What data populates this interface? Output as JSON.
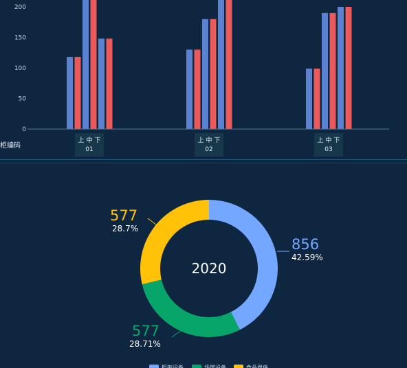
{
  "chart_data": [
    {
      "type": "bar",
      "categories": [
        "01",
        "02",
        "03"
      ],
      "sub_labels": [
        "上",
        "中",
        "下"
      ],
      "xlabel": "柜编码",
      "yticks": [
        0,
        50,
        100,
        150,
        200
      ],
      "ylim": [
        0,
        215
      ],
      "grid": false,
      "colors": [
        "#5b82d0",
        "#ea5a5a"
      ],
      "series": [
        {
          "values": [
            118,
            130,
            99
          ]
        },
        {
          "values": [
            118,
            130,
            99
          ]
        },
        {
          "values": [
            215,
            180,
            190
          ]
        },
        {
          "values": [
            215,
            180,
            190
          ]
        },
        {
          "values": [
            148,
            215,
            200
          ]
        },
        {
          "values": [
            148,
            215,
            200
          ]
        }
      ]
    },
    {
      "type": "pie",
      "donut": true,
      "center_label": "2020",
      "slices": [
        {
          "value": 856,
          "value_label": "856",
          "percent_label": "42.59%",
          "color": "#74a7ff"
        },
        {
          "value": 577,
          "value_label": "577",
          "percent_label": "28.71%",
          "color": "#08a56b"
        },
        {
          "value": 577,
          "value_label": "577",
          "percent_label": "28.7%",
          "color": "#ffc208"
        }
      ],
      "legend": {
        "position": "bottom",
        "entries": [
          {
            "label": "柜架设备",
            "color": "#74a7ff"
          },
          {
            "label": "场馆设备",
            "color": "#08a56b"
          },
          {
            "label": "食品器件",
            "color": "#ffc208"
          }
        ]
      }
    }
  ]
}
